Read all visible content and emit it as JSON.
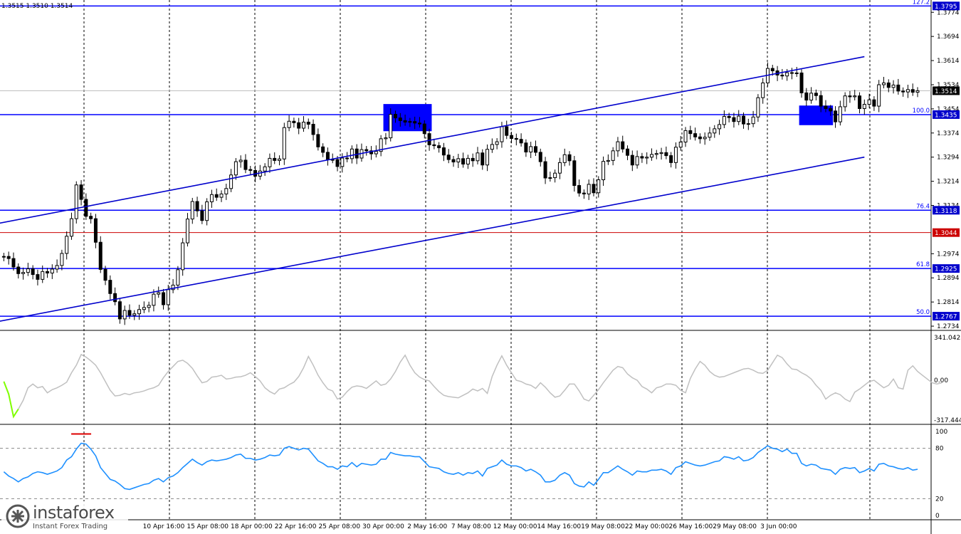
{
  "header": {
    "ohlc": "1.3515 1.3510 1.3514"
  },
  "logo": {
    "name": "instaforex",
    "tagline": "Instant Forex Trading"
  },
  "colors": {
    "channel": "#0000cc",
    "fib": "#0000ff",
    "candle": "#000000",
    "highlight": "#0000ff",
    "osc1": "#c0c0c0",
    "osc1_tail": "#7fff00",
    "osc2": "#1e90ff",
    "current_line": "#c0c0c0",
    "red_level": "#cc0000",
    "badge_blue": "#0000cc",
    "badge_red": "#cc0000",
    "badge_black": "#000000",
    "overbought_mark": "#dd0000"
  },
  "chart_data": [
    {
      "type": "candlestick",
      "title": "",
      "price_range": [
        1.272,
        1.381
      ],
      "price_ticks": [
        "1.3774",
        "1.3694",
        "1.3614",
        "1.3534",
        "1.3454",
        "1.3374",
        "1.3294",
        "1.3214",
        "1.3134",
        "1.2974",
        "1.2894",
        "1.2814",
        "1.2734"
      ],
      "time_labels": [
        "10 Apr 16:00",
        "15 Apr 08:00",
        "18 Apr 00:00",
        "22 Apr 16:00",
        "25 Apr 08:00",
        "30 Apr 00:00",
        "2 May 16:00",
        "7 May 08:00",
        "12 May 00:00",
        "14 May 16:00",
        "19 May 08:00",
        "22 May 00:00",
        "26 May 16:00",
        "29 May 08:00",
        "3 Jun 00:00"
      ],
      "current_price": {
        "label": "1.3514",
        "value": 1.3514
      },
      "levels": [
        {
          "name": "127.2",
          "price": 1.3795,
          "label": "1.3795"
        },
        {
          "name": "100.0",
          "price": 1.3435,
          "label": "1.3435"
        },
        {
          "name": "76.4",
          "price": 1.3118,
          "label": "1.3118"
        },
        {
          "name": "",
          "price": 1.3044,
          "label": "1.3044",
          "color": "red"
        },
        {
          "name": "61.8",
          "price": 1.2925,
          "label": "1.2925"
        },
        {
          "name": "50.0",
          "price": 1.2767,
          "label": "1.2767"
        }
      ],
      "trend_channel": {
        "upper": [
          {
            "bar": 0,
            "price": 1.3075
          },
          {
            "bar": 178,
            "price": 1.3627
          }
        ],
        "lower": [
          {
            "bar": 0,
            "price": 1.275
          },
          {
            "bar": 178,
            "price": 1.3294
          }
        ]
      },
      "highlight_boxes": [
        {
          "bar_from": 79,
          "bar_to": 88,
          "price_from": 1.338,
          "price_to": 1.347
        },
        {
          "bar_from": 165,
          "bar_to": 171,
          "price_from": 1.34,
          "price_to": 1.3465
        }
      ],
      "close": [
        1.2965,
        1.2958,
        1.293,
        1.2908,
        1.2912,
        1.2924,
        1.2905,
        1.2889,
        1.2915,
        1.291,
        1.2923,
        1.2935,
        1.2975,
        1.3032,
        1.309,
        1.3202,
        1.3154,
        1.3098,
        1.309,
        1.3012,
        1.2922,
        1.2886,
        1.2842,
        1.2815,
        1.2758,
        1.2786,
        1.277,
        1.2775,
        1.2789,
        1.2796,
        1.2803,
        1.284,
        1.2845,
        1.2805,
        1.2855,
        1.287,
        1.2921,
        1.301,
        1.3089,
        1.3147,
        1.3116,
        1.3084,
        1.3146,
        1.317,
        1.3161,
        1.3172,
        1.319,
        1.3235,
        1.3279,
        1.3284,
        1.3253,
        1.325,
        1.3231,
        1.3248,
        1.3262,
        1.329,
        1.3283,
        1.3288,
        1.3392,
        1.3413,
        1.3408,
        1.339,
        1.341,
        1.3403,
        1.3369,
        1.3328,
        1.331,
        1.3286,
        1.3286,
        1.3263,
        1.3291,
        1.3289,
        1.3321,
        1.3291,
        1.3319,
        1.3315,
        1.3305,
        1.3313,
        1.3355,
        1.3358,
        1.3436,
        1.3424,
        1.3415,
        1.341,
        1.3412,
        1.3407,
        1.3404,
        1.3372,
        1.3335,
        1.3332,
        1.3325,
        1.3301,
        1.3286,
        1.3278,
        1.3289,
        1.3271,
        1.329,
        1.3282,
        1.3308,
        1.3268,
        1.332,
        1.3336,
        1.3345,
        1.3395,
        1.3366,
        1.3356,
        1.3353,
        1.3341,
        1.3311,
        1.3329,
        1.331,
        1.3279,
        1.3225,
        1.3226,
        1.3241,
        1.3276,
        1.3302,
        1.3282,
        1.32,
        1.3175,
        1.3172,
        1.3204,
        1.3176,
        1.3219,
        1.328,
        1.3283,
        1.3315,
        1.3345,
        1.3321,
        1.33,
        1.3268,
        1.3296,
        1.3291,
        1.3294,
        1.3303,
        1.3306,
        1.3309,
        1.3299,
        1.3276,
        1.3327,
        1.3344,
        1.3382,
        1.3372,
        1.3361,
        1.3355,
        1.336,
        1.3374,
        1.3388,
        1.3402,
        1.3429,
        1.3425,
        1.3412,
        1.343,
        1.3404,
        1.3405,
        1.3427,
        1.3491,
        1.354,
        1.3588,
        1.358,
        1.3566,
        1.3563,
        1.3574,
        1.3572,
        1.3573,
        1.3507,
        1.3483,
        1.3506,
        1.3498,
        1.3463,
        1.3455,
        1.3447,
        1.3411,
        1.3461,
        1.3497,
        1.3494,
        1.3497,
        1.3455,
        1.3469,
        1.3484,
        1.3463,
        1.3534,
        1.354,
        1.3525,
        1.3533,
        1.3513,
        1.351,
        1.3518,
        1.3509,
        1.3514
      ]
    },
    {
      "type": "line",
      "title": "",
      "y_ticks": [
        "341.0423",
        "0.00",
        "-317.444"
      ],
      "ylim": [
        -317.444,
        341.0423
      ],
      "series": [
        {
          "values": [
            -10,
            -110,
            -290,
            -230,
            -160,
            -60,
            -30,
            -60,
            -50,
            -100,
            -75,
            -60,
            -40,
            -15,
            60,
            120,
            205,
            185,
            155,
            120,
            60,
            -10,
            -80,
            -125,
            -120,
            -105,
            -115,
            -100,
            -95,
            -85,
            -70,
            -60,
            -40,
            20,
            70,
            110,
            150,
            160,
            135,
            95,
            35,
            -20,
            -10,
            25,
            30,
            40,
            10,
            15,
            25,
            28,
            40,
            60,
            30,
            -5,
            -60,
            -90,
            -110,
            -70,
            -60,
            -35,
            -15,
            30,
            100,
            190,
            120,
            40,
            -20,
            -70,
            -85,
            -150,
            -135,
            -90,
            -55,
            -45,
            -50,
            -65,
            -35,
            -5,
            -40,
            -30,
            10,
            70,
            145,
            200,
            120,
            60,
            25,
            5,
            -5,
            -50,
            -90,
            -120,
            -130,
            -135,
            -140,
            -120,
            -100,
            -70,
            -85,
            -65,
            -105,
            30,
            120,
            195,
            120,
            60,
            0,
            -10,
            -30,
            -40,
            -65,
            -20,
            -55,
            -100,
            -135,
            -125,
            -80,
            -30,
            -30,
            -85,
            -150,
            -165,
            -120,
            -75,
            -20,
            30,
            80,
            110,
            100,
            50,
            20,
            0,
            -50,
            -70,
            -100,
            -60,
            -50,
            -30,
            -30,
            -40,
            -80,
            -100,
            15,
            90,
            150,
            120,
            70,
            40,
            25,
            30,
            45,
            60,
            75,
            90,
            95,
            80,
            60,
            55,
            80,
            140,
            200,
            180,
            130,
            90,
            85,
            60,
            40,
            10,
            -40,
            -80,
            -150,
            -120,
            -100,
            -115,
            -150,
            -170,
            -95,
            -70,
            -40,
            -10,
            0,
            -30,
            -60,
            -40,
            10,
            -60,
            -70,
            80,
            115,
            70,
            40,
            10,
            -20,
            -30,
            -20
          ]
        }
      ]
    },
    {
      "type": "line",
      "title": "",
      "y_ticks": [
        "100",
        "80",
        "20",
        "0"
      ],
      "ylim": [
        0,
        100
      ],
      "series": [
        {
          "values": [
            52,
            47,
            44,
            40,
            44,
            46,
            50,
            52,
            51,
            49,
            51,
            53,
            57,
            66,
            70,
            79,
            86,
            85,
            79,
            71,
            57,
            50,
            43,
            41,
            37,
            32,
            31,
            33,
            35,
            37,
            38,
            42,
            44,
            40,
            45,
            47,
            51,
            57,
            62,
            67,
            63,
            60,
            64,
            66,
            65,
            66,
            67,
            69,
            72,
            73,
            68,
            68,
            66,
            67,
            69,
            72,
            71,
            72,
            80,
            82,
            80,
            78,
            80,
            79,
            72,
            65,
            62,
            58,
            58,
            55,
            59,
            58,
            63,
            58,
            62,
            61,
            60,
            61,
            67,
            67,
            75,
            73,
            72,
            71,
            71,
            70,
            70,
            64,
            58,
            57,
            56,
            52,
            50,
            49,
            51,
            48,
            51,
            50,
            53,
            47,
            56,
            58,
            60,
            66,
            61,
            59,
            59,
            57,
            53,
            55,
            52,
            48,
            40,
            40,
            42,
            48,
            51,
            48,
            38,
            35,
            34,
            40,
            36,
            43,
            51,
            51,
            55,
            59,
            55,
            52,
            48,
            53,
            52,
            52,
            54,
            54,
            55,
            53,
            49,
            57,
            59,
            64,
            62,
            60,
            59,
            60,
            62,
            64,
            65,
            70,
            69,
            67,
            70,
            65,
            66,
            69,
            75,
            79,
            83,
            80,
            79,
            76,
            79,
            74,
            74,
            62,
            59,
            61,
            60,
            56,
            55,
            54,
            49,
            55,
            57,
            56,
            57,
            51,
            53,
            56,
            53,
            61,
            62,
            59,
            58,
            56,
            55,
            57,
            54,
            55
          ]
        }
      ]
    }
  ]
}
